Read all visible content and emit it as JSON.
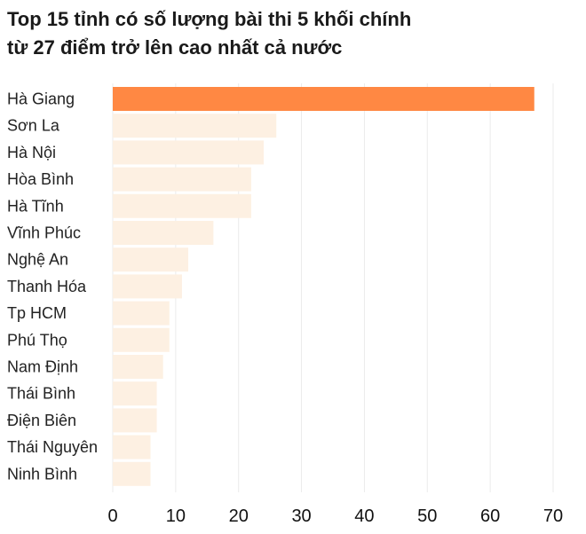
{
  "chart_data": {
    "type": "bar",
    "orientation": "horizontal",
    "title_lines": [
      "Top 15 tỉnh có số lượng bài thi 5 khối chính",
      "từ 27 điểm trở lên cao nhất cả nước"
    ],
    "categories": [
      "Hà Giang",
      "Sơn La",
      "Hà Nội",
      "Hòa Bình",
      "Hà Tĩnh",
      "Vĩnh Phúc",
      "Nghệ An",
      "Thanh Hóa",
      "Tp HCM",
      "Phú Thọ",
      "Nam Định",
      "Thái Bình",
      "Điện Biên",
      "Thái Nguyên",
      "Ninh Bình"
    ],
    "values": [
      67,
      26,
      24,
      22,
      22,
      16,
      12,
      11,
      9,
      9,
      8,
      7,
      7,
      6,
      6
    ],
    "xlim": [
      0,
      70
    ],
    "xticks": [
      0,
      10,
      20,
      30,
      40,
      50,
      60,
      70
    ],
    "grid": true,
    "colors": {
      "highlight": "#ff8843",
      "default": "#fdf0e2",
      "grid": "#ebebeb"
    }
  }
}
